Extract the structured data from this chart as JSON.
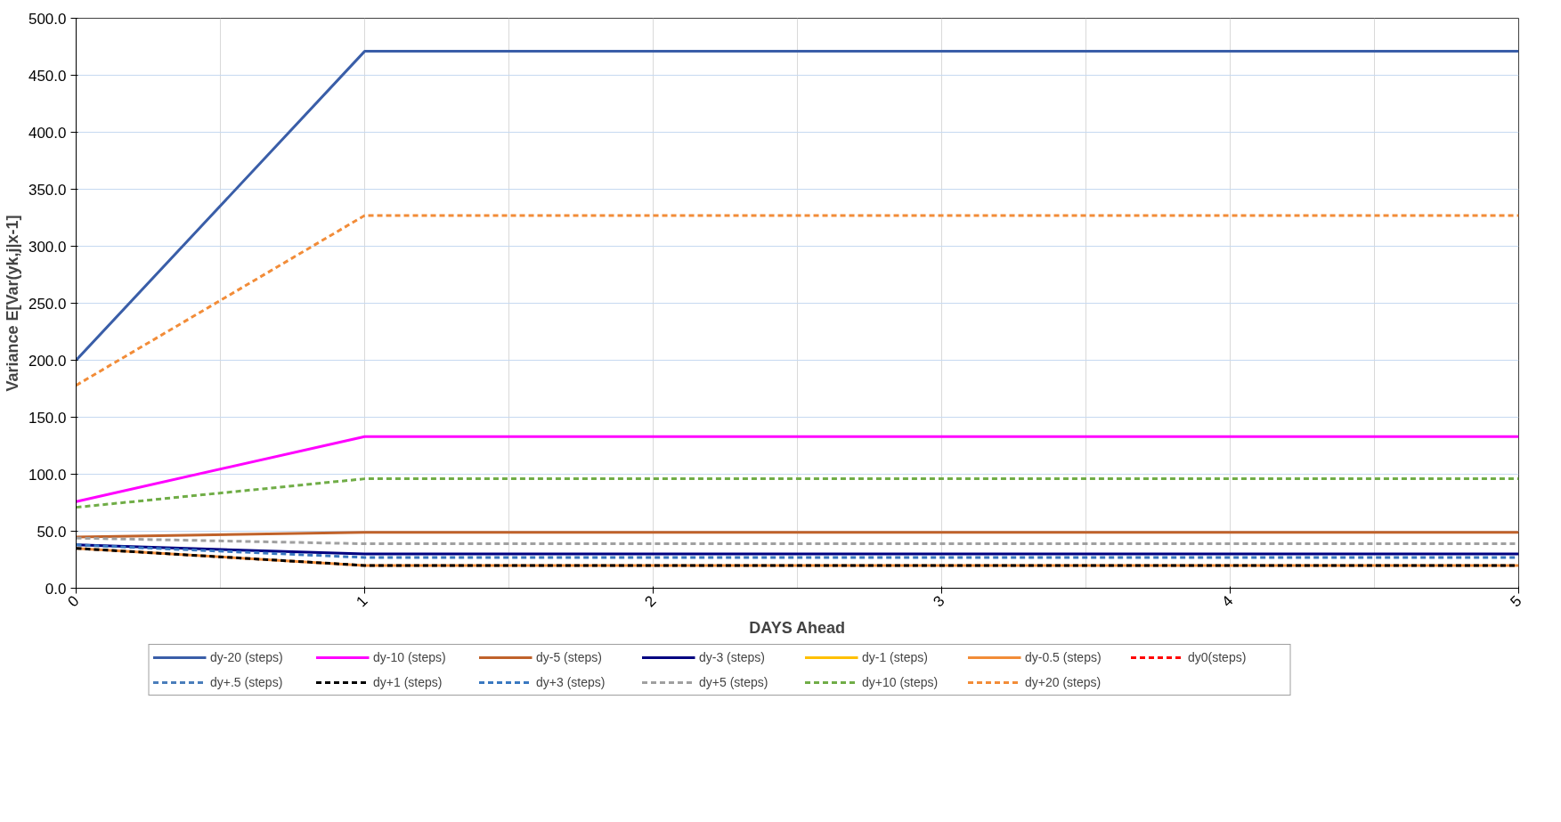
{
  "chart_data": {
    "type": "line",
    "xlabel": "DAYS Ahead",
    "ylabel": "Variance E[Var(yk,j|x-1]",
    "x": [
      0,
      1,
      2,
      3,
      4,
      5
    ],
    "xlim": [
      0,
      5
    ],
    "xticks": [
      0,
      1,
      2,
      3,
      4,
      5
    ],
    "ylim": [
      0,
      500
    ],
    "yticks": [
      {
        "value": 0,
        "label": "0.0"
      },
      {
        "value": 50,
        "label": "50.0"
      },
      {
        "value": 100,
        "label": "100.0"
      },
      {
        "value": 150,
        "label": "150.0"
      },
      {
        "value": 200,
        "label": "200.0"
      },
      {
        "value": 250,
        "label": "250.0"
      },
      {
        "value": 300,
        "label": "300.0"
      },
      {
        "value": 350,
        "label": "350.0"
      },
      {
        "value": 400,
        "label": "400.0"
      },
      {
        "value": 450,
        "label": "450.0"
      },
      {
        "value": 500,
        "label": "500.0"
      }
    ],
    "grid": true,
    "legend": "bottom",
    "marker": "none",
    "series": [
      {
        "name": "dy-20 (steps)",
        "color": "#3a5ea8",
        "line_style": "solid",
        "values": [
          200,
          471,
          471,
          471,
          471,
          471
        ]
      },
      {
        "name": "dy-10 (steps)",
        "color": "#ff00ff",
        "line_style": "solid",
        "values": [
          76,
          133,
          133,
          133,
          133,
          133
        ]
      },
      {
        "name": "dy-5 (steps)",
        "color": "#c0622a",
        "line_style": "solid",
        "values": [
          45,
          49,
          49,
          49,
          49,
          49
        ]
      },
      {
        "name": "dy-3 (steps)",
        "color": "#000080",
        "line_style": "solid",
        "values": [
          38,
          30,
          30,
          30,
          30,
          30
        ]
      },
      {
        "name": "dy-1 (steps)",
        "color": "#ffc000",
        "line_style": "solid",
        "values": [
          null,
          null,
          null,
          null,
          null,
          null
        ]
      },
      {
        "name": "dy-0.5 (steps)",
        "color": "#f28c38",
        "line_style": "solid",
        "values": [
          35,
          20,
          20,
          20,
          20,
          20
        ]
      },
      {
        "name": "dy0(steps)",
        "color": "#ff0000",
        "line_style": "dashed",
        "values": [
          null,
          null,
          null,
          null,
          null,
          null
        ]
      },
      {
        "name": "dy+.5 (steps)",
        "color": "#4a7ebb",
        "line_style": "dashed",
        "values": [
          null,
          null,
          null,
          null,
          null,
          null
        ]
      },
      {
        "name": "dy+1 (steps)",
        "color": "#000000",
        "line_style": "dashed",
        "values": [
          35,
          20,
          20,
          20,
          20,
          20
        ]
      },
      {
        "name": "dy+3 (steps)",
        "color": "#3a78c0",
        "line_style": "dashed",
        "values": [
          38,
          27,
          27,
          27,
          27,
          27
        ]
      },
      {
        "name": "dy+5 (steps)",
        "color": "#a0a0a0",
        "line_style": "dashed",
        "values": [
          44,
          39,
          39,
          39,
          39,
          39
        ]
      },
      {
        "name": "dy+10 (steps)",
        "color": "#70ad47",
        "line_style": "dashed",
        "values": [
          71,
          96,
          96,
          96,
          96,
          96
        ]
      },
      {
        "name": "dy+20 (steps)",
        "color": "#f28c38",
        "line_style": "dashed",
        "values": [
          178,
          327,
          327,
          327,
          327,
          327
        ]
      }
    ]
  }
}
